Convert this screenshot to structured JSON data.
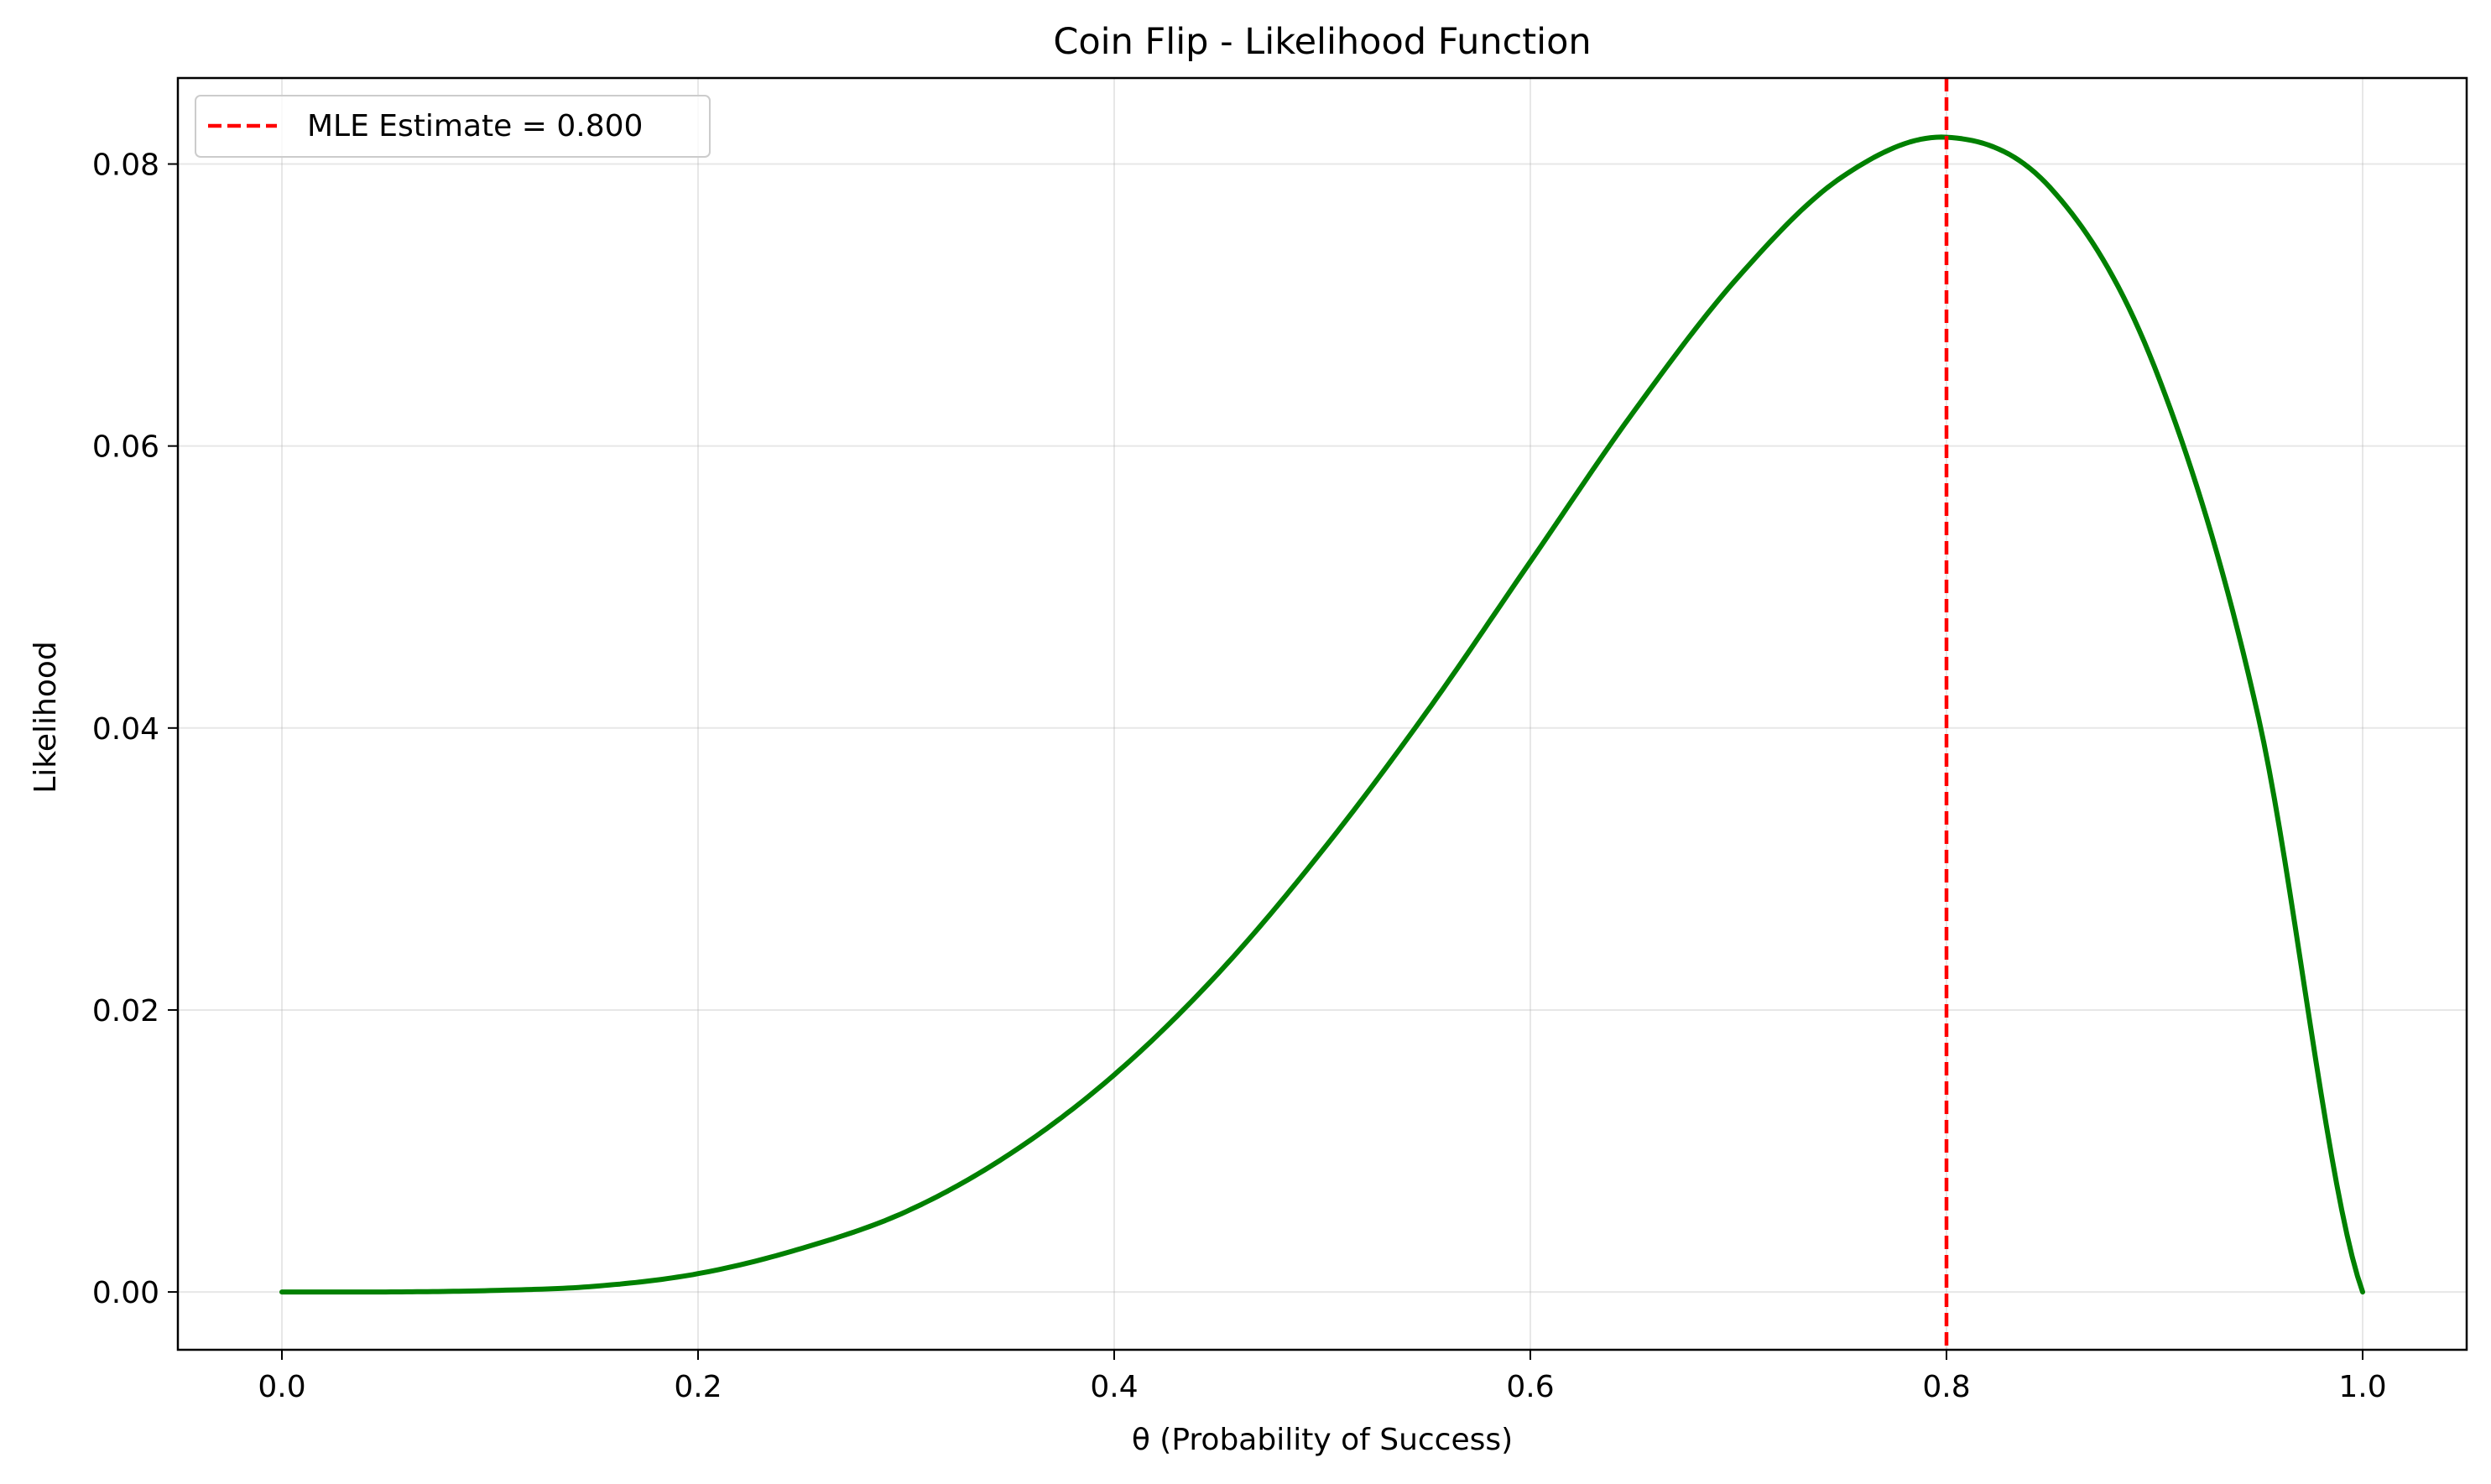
{
  "chart_data": {
    "type": "line",
    "title": "Coin Flip - Likelihood Function",
    "xlabel": "θ (Probability of Success)",
    "ylabel": "Likelihood",
    "xlim": [
      -0.05,
      1.05
    ],
    "ylim": [
      -0.0041,
      0.0861
    ],
    "x_ticks": [
      0.0,
      0.2,
      0.4,
      0.6,
      0.8,
      1.0
    ],
    "x_tick_labels": [
      "0.0",
      "0.2",
      "0.4",
      "0.6",
      "0.8",
      "1.0"
    ],
    "y_ticks": [
      0.0,
      0.02,
      0.04,
      0.06,
      0.08
    ],
    "y_tick_labels": [
      "0.00",
      "0.02",
      "0.04",
      "0.06",
      "0.08"
    ],
    "grid": true,
    "legend_position": "upper-left",
    "series": [
      {
        "color": "#008000",
        "x": [
          0.0,
          0.05,
          0.1,
          0.15,
          0.2,
          0.25,
          0.3,
          0.35,
          0.4,
          0.45,
          0.5,
          0.55,
          0.6,
          0.65,
          0.7,
          0.75,
          0.8,
          0.85,
          0.9,
          0.95,
          1.0
        ],
        "y": [
          0.0,
          0.0,
          0.0001,
          0.0004,
          0.0013,
          0.0031,
          0.0057,
          0.0098,
          0.0154,
          0.0226,
          0.0313,
          0.0411,
          0.0518,
          0.0625,
          0.072,
          0.0791,
          0.0819,
          0.0783,
          0.0656,
          0.0407,
          0.0
        ]
      }
    ],
    "reference_lines": [
      {
        "orientation": "vertical",
        "x": 0.8,
        "label": "MLE Estimate = 0.800",
        "color": "#ff0000",
        "style": "dashed"
      }
    ]
  }
}
